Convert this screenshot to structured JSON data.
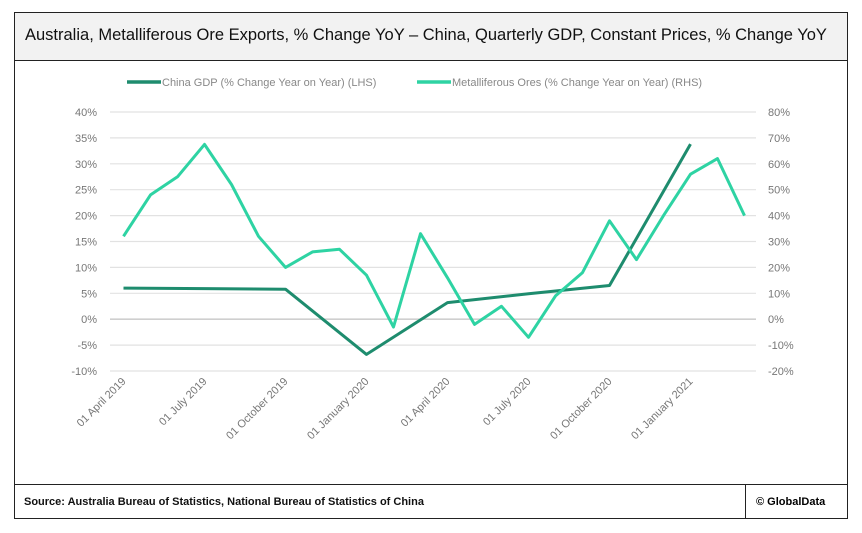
{
  "header": {
    "title": "Australia, Metalliferous Ore Exports, % Change YoY – China, Quarterly GDP, Constant Prices, % Change YoY"
  },
  "footer": {
    "source": "Source: Australia Bureau of Statistics, National Bureau of Statistics of China",
    "copyright": "© GlobalData"
  },
  "chart_data": {
    "type": "line",
    "title": "Australia, Metalliferous Ore Exports, % Change YoY – China, Quarterly GDP, Constant Prices, % Change YoY",
    "x": [
      "Apr 2019",
      "May 2019",
      "Jun 2019",
      "Jul 2019",
      "Aug 2019",
      "Sep 2019",
      "Oct 2019",
      "Nov 2019",
      "Dec 2019",
      "Jan 2020",
      "Feb 2020",
      "Mar 2020",
      "Apr 2020",
      "May 2020",
      "Jun 2020",
      "Jul 2020",
      "Aug 2020",
      "Sep 2020",
      "Oct 2020",
      "Nov 2020",
      "Dec 2020",
      "Jan 2021",
      "Feb 2021",
      "Mar 2021"
    ],
    "x_tick_labels": [
      "01 April 2019",
      "01 July 2019",
      "01 October 2019",
      "01 January 2020",
      "01 April 2020",
      "01 July 2020",
      "01 October 2020",
      "01 January 2021"
    ],
    "x_tick_index": [
      0,
      3,
      6,
      9,
      12,
      15,
      18,
      21
    ],
    "y_left": {
      "range": [
        -10,
        40
      ],
      "ticks": [
        "-10%",
        "-5%",
        "0%",
        "5%",
        "10%",
        "15%",
        "20%",
        "25%",
        "30%",
        "35%",
        "40%"
      ],
      "tick_values": [
        -10,
        -5,
        0,
        5,
        10,
        15,
        20,
        25,
        30,
        35,
        40
      ]
    },
    "y_right": {
      "range": [
        -20,
        80
      ],
      "ticks": [
        "-20%",
        "-10%",
        "0%",
        "10%",
        "20%",
        "30%",
        "40%",
        "50%",
        "60%",
        "70%",
        "80%"
      ],
      "tick_values": [
        -20,
        -10,
        0,
        10,
        20,
        30,
        40,
        50,
        60,
        70,
        80
      ]
    },
    "grid": true,
    "legend_position": "top",
    "series": [
      {
        "name": "China GDP  (% Change Year on Year) (LHS)",
        "axis": "left",
        "color": "#1e8c6e",
        "values": [
          6.0,
          null,
          null,
          5.9,
          null,
          null,
          5.8,
          null,
          null,
          -6.8,
          null,
          null,
          3.2,
          null,
          null,
          4.9,
          null,
          null,
          6.5,
          null,
          null,
          33.8,
          null,
          null
        ]
      },
      {
        "name": "Metalliferous Ores (% Change Year on Year) (RHS)",
        "axis": "right",
        "color": "#2ed3a3",
        "values": [
          32,
          48,
          55,
          67.5,
          52,
          32,
          20,
          26,
          27,
          17,
          -3,
          33,
          16,
          -2,
          5,
          -7,
          9,
          18,
          38,
          23,
          40,
          56,
          62,
          40
        ]
      }
    ]
  }
}
